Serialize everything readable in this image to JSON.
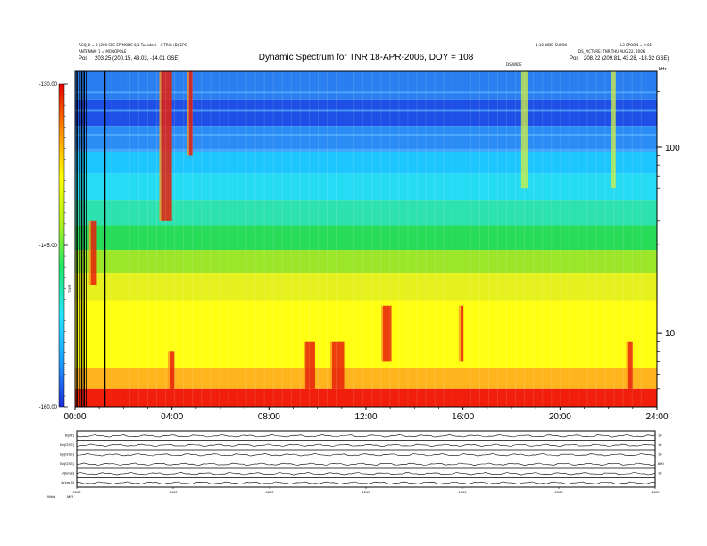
{
  "header": {
    "title": "Dynamic Spectrum for TNR 18-APR-2006, DOY = 108",
    "left_line1": "ACQ_0 = 3 (200 SPC EP MODE 0/1 Tuesday) - A-TRIG (D) EPC",
    "left_line2": "ANTENNA: 1 = MONOPOLE",
    "left_pos_label": "Pos",
    "left_pos_value": "203.25 (200.15, 43.03, -14.01 GSE)",
    "right_line1a": "1.10 WDD SUPOX",
    "right_line1b": "L3 SPOON = 0.01",
    "right_line2": "DS_PICTURE: TNR THU AUG 22, 2006",
    "right_pos_label": "Pos",
    "right_pos_value": "208.22 (209.81, 43.28, -13.32 GSE)",
    "marker": "DS/WIDE",
    "khz_unit": "kHz"
  },
  "chart_data": {
    "type": "heatmap",
    "title": "Dynamic Spectrum for TNR 18-APR-2006, DOY = 108",
    "x_tick_labels": [
      "00:00",
      "04:00",
      "08:00",
      "12:00",
      "16:00",
      "20:00",
      "24:00"
    ],
    "x_ticks_hours": [
      0,
      4,
      8,
      12,
      16,
      20,
      24
    ],
    "x_range_hours": [
      0,
      24
    ],
    "y_scale": "log",
    "y_unit": "kHz",
    "y_range_khz": [
      4,
      256
    ],
    "y_tick_labels": [
      "100",
      "10"
    ],
    "y_ticks_khz": [
      100,
      10
    ],
    "colorbar": {
      "tick_labels": [
        "-130.00",
        "-145.00",
        "-160.00"
      ],
      "ticks": [
        -130,
        -145,
        -160
      ],
      "range": [
        -160,
        -130
      ],
      "label": "TNR",
      "colors": [
        "#1e2bd8",
        "#1ea0ff",
        "#22e6ff",
        "#1ee86a",
        "#b4f01e",
        "#ffff00",
        "#ff8c00",
        "#e60000"
      ]
    },
    "bands": [
      {
        "from_khz": 180,
        "to_khz": 256,
        "color": "#2a7ef0"
      },
      {
        "from_khz": 130,
        "to_khz": 180,
        "color": "#1e4fe6"
      },
      {
        "from_khz": 95,
        "to_khz": 130,
        "color": "#2b8cf5"
      },
      {
        "from_khz": 72,
        "to_khz": 95,
        "color": "#1ec6ff"
      },
      {
        "from_khz": 52,
        "to_khz": 72,
        "color": "#26dcf5"
      },
      {
        "from_khz": 38,
        "to_khz": 52,
        "color": "#2ee1b0"
      },
      {
        "from_khz": 28,
        "to_khz": 38,
        "color": "#28dc5a"
      },
      {
        "from_khz": 21,
        "to_khz": 28,
        "color": "#9be628"
      },
      {
        "from_khz": 15,
        "to_khz": 21,
        "color": "#e6f01e"
      },
      {
        "from_khz": 6.5,
        "to_khz": 15,
        "color": "#ffff14"
      },
      {
        "from_khz": 5,
        "to_khz": 6.5,
        "color": "#ffb41e"
      },
      {
        "from_khz": 4,
        "to_khz": 5,
        "color": "#f01e0a"
      }
    ],
    "events": [
      {
        "t": 0.05,
        "w": 0.03,
        "kind": "gap"
      },
      {
        "t": 0.15,
        "w": 0.03,
        "kind": "gap"
      },
      {
        "t": 0.25,
        "w": 0.03,
        "kind": "gap"
      },
      {
        "t": 0.35,
        "w": 0.02,
        "kind": "gap"
      },
      {
        "t": 0.45,
        "w": 0.02,
        "kind": "gap"
      },
      {
        "t": 1.2,
        "w": 0.06,
        "kind": "gap"
      },
      {
        "t": 0.65,
        "w": 0.25,
        "kind": "burst",
        "from_khz": 18,
        "to_khz": 40
      },
      {
        "t": 3.55,
        "w": 0.45,
        "kind": "burst",
        "from_khz": 40,
        "to_khz": 256
      },
      {
        "t": 4.7,
        "w": 0.15,
        "kind": "burst",
        "from_khz": 90,
        "to_khz": 256
      },
      {
        "t": 12.7,
        "w": 0.35,
        "kind": "burst",
        "from_khz": 7,
        "to_khz": 14
      },
      {
        "t": 15.9,
        "w": 0.12,
        "kind": "burst",
        "from_khz": 7,
        "to_khz": 14
      },
      {
        "t": 18.4,
        "w": 0.3,
        "kind": "storm",
        "from_khz": 60,
        "to_khz": 256
      },
      {
        "t": 22.1,
        "w": 0.2,
        "kind": "storm",
        "from_khz": 60,
        "to_khz": 256
      },
      {
        "t": 3.9,
        "w": 0.2,
        "kind": "burst",
        "from_khz": 5,
        "to_khz": 8
      },
      {
        "t": 9.5,
        "w": 0.4,
        "kind": "burst",
        "from_khz": 5,
        "to_khz": 9
      },
      {
        "t": 10.6,
        "w": 0.5,
        "kind": "burst",
        "from_khz": 5,
        "to_khz": 9
      },
      {
        "t": 22.8,
        "w": 0.2,
        "kind": "burst",
        "from_khz": 5,
        "to_khz": 9
      }
    ]
  },
  "bottom_panels": {
    "left_labels": [
      "B(nT)",
      "Bx(GSE)",
      "By(GSE)",
      "Bz(GSE)",
      "V(km/s)",
      "N(cm-3)"
    ],
    "right_labels": [
      "10",
      "10",
      "10",
      "800",
      "10"
    ],
    "x_tick_labels": [
      "0000",
      "0400",
      "0800",
      "1200",
      "1600",
      "2000",
      "2400"
    ],
    "footer_left": "Wind",
    "footer_right": "MFI"
  }
}
